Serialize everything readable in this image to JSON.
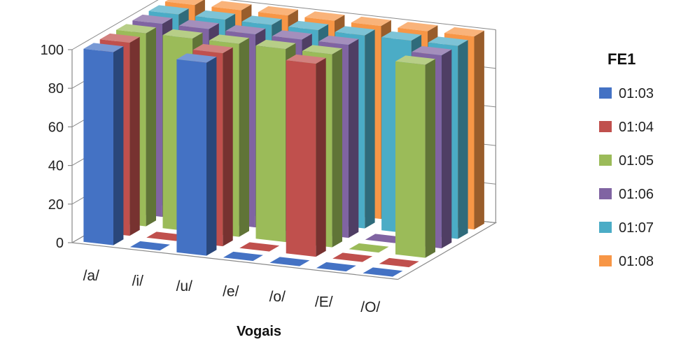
{
  "chart_data": {
    "type": "bar",
    "title": "",
    "xlabel": "Vogais",
    "ylabel": "",
    "ylim": [
      0,
      100
    ],
    "yticks": [
      0,
      20,
      40,
      60,
      80,
      100
    ],
    "categories": [
      "/a/",
      "/i/",
      "/u/",
      "/e/",
      "/o/",
      "/E/",
      "/O/"
    ],
    "legend": {
      "title": "FE1",
      "placement": "right"
    },
    "series": [
      {
        "name": "01:03",
        "color": "#4472C4",
        "values": [
          100,
          0,
          100,
          0,
          0,
          0,
          0
        ]
      },
      {
        "name": "01:04",
        "color": "#C0504D",
        "values": [
          100,
          0,
          100,
          0,
          100,
          0,
          0
        ]
      },
      {
        "name": "01:05",
        "color": "#9BBB59",
        "values": [
          100,
          100,
          100,
          100,
          100,
          0,
          100
        ]
      },
      {
        "name": "01:06",
        "color": "#8064A2",
        "values": [
          100,
          100,
          100,
          100,
          100,
          0,
          100
        ]
      },
      {
        "name": "01:07",
        "color": "#4BACC6",
        "values": [
          100,
          100,
          100,
          100,
          100,
          100,
          100
        ]
      },
      {
        "name": "01:08",
        "color": "#F79646",
        "values": [
          100,
          100,
          100,
          100,
          100,
          100,
          100
        ]
      }
    ]
  }
}
